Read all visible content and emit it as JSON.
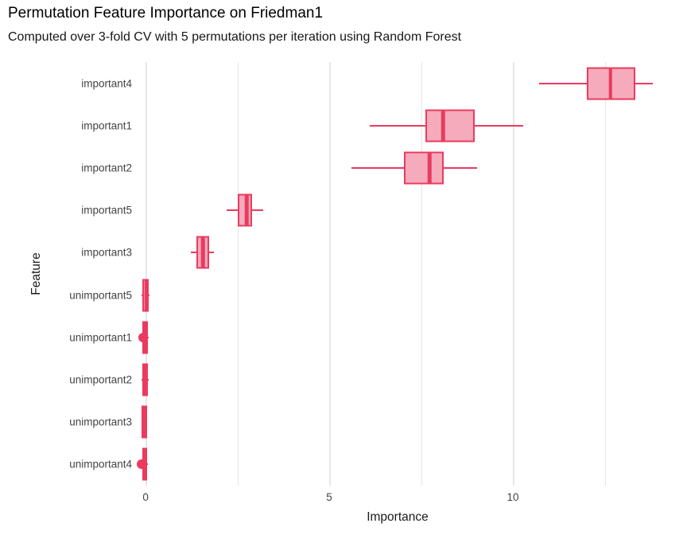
{
  "chart_data": {
    "type": "boxplot",
    "orientation": "horizontal",
    "title": "Permutation Feature Importance on Friedman1",
    "subtitle": "Computed over 3-fold CV with 5 permutations per iteration using Random Forest",
    "xlabel": "Importance",
    "ylabel": "Feature",
    "xlim": [
      -0.24,
      13.96
    ],
    "x_ticks": [
      0,
      5,
      10
    ],
    "gridlines_x": [
      0,
      2.5,
      5,
      7.5,
      10,
      12.5
    ],
    "grid": "vertical-only",
    "legend": "none",
    "categories": [
      "important4",
      "important1",
      "important2",
      "important5",
      "important3",
      "unimportant5",
      "unimportant1",
      "unimportant2",
      "unimportant3",
      "unimportant4"
    ],
    "series": [
      {
        "feature": "important4",
        "whisker_low": 10.71,
        "q1": 12.01,
        "median": 12.66,
        "q3": 13.33,
        "whisker_high": 13.81,
        "outliers": []
      },
      {
        "feature": "important1",
        "whisker_low": 6.1,
        "q1": 7.62,
        "median": 8.1,
        "q3": 8.96,
        "whisker_high": 10.28,
        "outliers": []
      },
      {
        "feature": "important2",
        "whisker_low": 5.61,
        "q1": 7.03,
        "median": 7.73,
        "q3": 8.12,
        "whisker_high": 9.02,
        "outliers": []
      },
      {
        "feature": "important5",
        "whisker_low": 2.21,
        "q1": 2.51,
        "median": 2.75,
        "q3": 2.9,
        "whisker_high": 3.2,
        "outliers": []
      },
      {
        "feature": "important3",
        "whisker_low": 1.23,
        "q1": 1.39,
        "median": 1.56,
        "q3": 1.73,
        "whisker_high": 1.86,
        "outliers": []
      },
      {
        "feature": "unimportant5",
        "whisker_low": -0.11,
        "q1": -0.09,
        "median": 0.01,
        "q3": 0.08,
        "whisker_high": 0.11,
        "outliers": []
      },
      {
        "feature": "unimportant1",
        "whisker_low": -0.1,
        "q1": -0.08,
        "median": 0.0,
        "q3": 0.07,
        "whisker_high": 0.08,
        "outliers": [
          -0.07
        ]
      },
      {
        "feature": "unimportant2",
        "whisker_low": -0.1,
        "q1": -0.09,
        "median": -0.01,
        "q3": 0.06,
        "whisker_high": 0.08,
        "outliers": []
      },
      {
        "feature": "unimportant3",
        "whisker_low": -0.12,
        "q1": -0.11,
        "median": -0.03,
        "q3": 0.04,
        "whisker_high": 0.05,
        "outliers": []
      },
      {
        "feature": "unimportant4",
        "whisker_low": -0.1,
        "q1": -0.08,
        "median": -0.02,
        "q3": 0.04,
        "whisker_high": 0.06,
        "outliers": [
          -0.11
        ]
      }
    ],
    "colors": {
      "box_border": "#ea3b5f",
      "box_fill": "#f6abbc",
      "gridline": "#e6e6e6",
      "tick_text": "#444444",
      "axis_title_text": "#1a1a1a",
      "title_text": "#000000",
      "background": "#ffffff"
    }
  }
}
